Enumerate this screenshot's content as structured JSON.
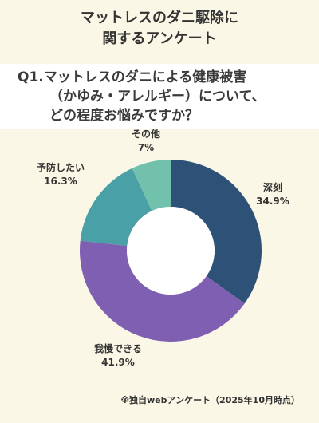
{
  "title": {
    "line1": "マットレスのダニ駆除に",
    "line2": "関するアンケート"
  },
  "question": {
    "line1": "Q1.マットレスのダニによる健康被害",
    "line2": "（かゆみ・アレルギー）について、",
    "line3": "どの程度お悩みですか？"
  },
  "chart_data": {
    "type": "pie",
    "donut": true,
    "slices": [
      {
        "label": "深刻",
        "value": 34.9,
        "value_label": "34.9%",
        "color": "#2e5177"
      },
      {
        "label": "我慢できる",
        "value": 41.9,
        "value_label": "41.9%",
        "color": "#7e5fb1"
      },
      {
        "label": "予防したい",
        "value": 16.3,
        "value_label": "16.3%",
        "color": "#4aa0a7"
      },
      {
        "label": "その他",
        "value": 7,
        "value_label": "7%",
        "color": "#72c1ad"
      }
    ],
    "legend": "none"
  },
  "footnote": "※独自webアンケート（2025年10月時点）"
}
